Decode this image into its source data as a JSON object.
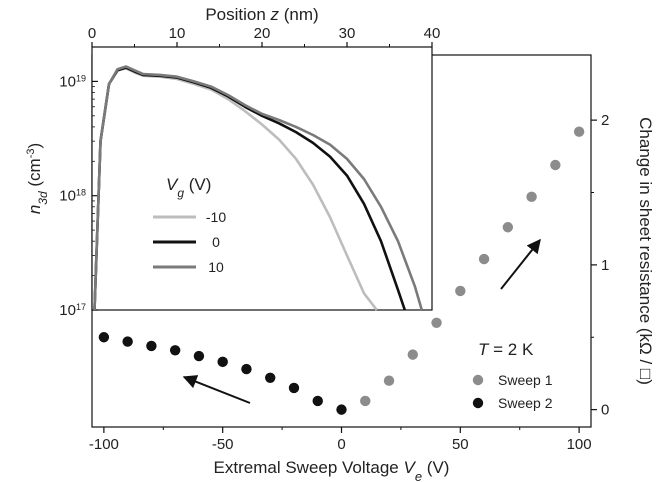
{
  "chart_data": [
    {
      "id": "main",
      "type": "scatter",
      "xlabel": "Extremal Sweep Voltage V_e (V)",
      "xlabel_parts": {
        "pre": "Extremal Sweep Voltage ",
        "var": "V",
        "sub": "e",
        "post": " (V)"
      },
      "ylabel": "Change in sheet resistance (kΩ / □)",
      "xlim": [
        -105,
        105
      ],
      "ylim": [
        -0.12,
        2.45
      ],
      "xticks": [
        -100,
        -50,
        0,
        50,
        100
      ],
      "yticks": [
        0,
        1,
        2
      ],
      "legend_title": {
        "var": "T",
        "rest": " = 2 K"
      },
      "series": [
        {
          "name": "Sweep 1",
          "color": "#8c8c8c",
          "x": [
            10,
            20,
            30,
            40,
            50,
            60,
            70,
            80,
            90,
            100
          ],
          "y": [
            0.06,
            0.2,
            0.38,
            0.6,
            0.82,
            1.04,
            1.26,
            1.47,
            1.69,
            1.92
          ]
        },
        {
          "name": "Sweep 2",
          "color": "#111111",
          "x": [
            -100,
            -90,
            -80,
            -70,
            -60,
            -50,
            -40,
            -30,
            -20,
            -10,
            0
          ],
          "y": [
            0.5,
            0.47,
            0.44,
            0.41,
            0.37,
            0.33,
            0.28,
            0.22,
            0.15,
            0.06,
            0.0
          ]
        }
      ]
    },
    {
      "id": "inset",
      "type": "line",
      "xlabel": "Position z (nm)",
      "xlabel_parts": {
        "pre": "Position ",
        "var": "z",
        "post": " (nm)"
      },
      "ylabel": "n_3d (cm^-3)",
      "ylabel_parts": {
        "var": "n",
        "sub": "3d",
        "pre": " (cm",
        "sup": "-3",
        "post": ")"
      },
      "xlim": [
        0,
        40
      ],
      "ylim_log": [
        1e+17,
        2e+19
      ],
      "xticks": [
        0,
        10,
        20,
        30,
        40
      ],
      "yticks": [
        {
          "value": 1e+17,
          "base": "10",
          "exp": "17"
        },
        {
          "value": 1e+18,
          "base": "10",
          "exp": "18"
        },
        {
          "value": 1e+19,
          "base": "10",
          "exp": "19"
        }
      ],
      "legend_title": {
        "var": "V",
        "sub": "g",
        "rest": " (V)"
      },
      "series": [
        {
          "name": "-10",
          "color": "#bdbdbd",
          "x": [
            0.3,
            1,
            2,
            3,
            4,
            5,
            6,
            8,
            10,
            12,
            14,
            16,
            18,
            20,
            22,
            24,
            26,
            28,
            30,
            32,
            33.5
          ],
          "y": [
            1e+17,
            3e+18,
            9.5e+18,
            1.25e+19,
            1.3e+19,
            1.2e+19,
            1.12e+19,
            1.1e+19,
            1.05e+19,
            9.5e+18,
            8.5e+18,
            7e+18,
            5.5e+18,
            4.2e+18,
            3.1e+18,
            2.1e+18,
            1.25e+18,
            6.5e+17,
            3e+17,
            1.4e+17,
            1e+17
          ]
        },
        {
          "name": "0",
          "color": "#111111",
          "x": [
            0.3,
            1,
            2,
            3,
            4,
            5,
            6,
            8,
            10,
            12,
            14,
            16,
            18,
            20,
            22,
            24,
            26,
            28,
            30,
            32,
            34,
            36,
            36.8
          ],
          "y": [
            1e+17,
            3e+18,
            9.5e+18,
            1.25e+19,
            1.32e+19,
            1.22e+19,
            1.14e+19,
            1.12e+19,
            1.08e+19,
            9.8e+18,
            8.8e+18,
            7.4e+18,
            6e+18,
            5e+18,
            4.3e+18,
            3.6e+18,
            2.9e+18,
            2.2e+18,
            1.5e+18,
            8.5e+17,
            4e+17,
            1.5e+17,
            1e+17
          ]
        },
        {
          "name": "10",
          "color": "#7a7a7a",
          "x": [
            0.3,
            1,
            2,
            3,
            4,
            5,
            6,
            8,
            10,
            12,
            14,
            16,
            18,
            20,
            22,
            24,
            26,
            28,
            30,
            32,
            34,
            36,
            38,
            38.8
          ],
          "y": [
            1e+17,
            3e+18,
            9.5e+18,
            1.28e+19,
            1.35e+19,
            1.25e+19,
            1.16e+19,
            1.14e+19,
            1.1e+19,
            1e+19,
            9e+18,
            7.6e+18,
            6.2e+18,
            5.2e+18,
            4.6e+18,
            4e+18,
            3.4e+18,
            2.8e+18,
            2.1e+18,
            1.4e+18,
            8e+17,
            4e+17,
            1.6e+17,
            1e+17
          ]
        }
      ]
    }
  ]
}
